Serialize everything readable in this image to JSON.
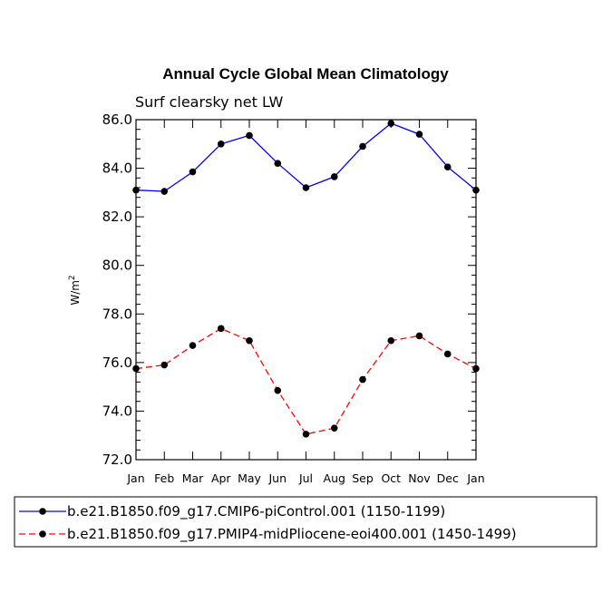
{
  "chart_data": {
    "type": "line",
    "title": "Annual Cycle Global Mean Climatology",
    "subtitle": "Surf clearsky net LW",
    "xlabel": "",
    "ylabel": "W/m",
    "ylabel_superscript": "2",
    "ylim": [
      72.0,
      86.0
    ],
    "yticks": [
      "72.0",
      "74.0",
      "76.0",
      "78.0",
      "80.0",
      "82.0",
      "84.0",
      "86.0"
    ],
    "categories": [
      "Jan",
      "Feb",
      "Mar",
      "Apr",
      "May",
      "Jun",
      "Jul",
      "Aug",
      "Sep",
      "Oct",
      "Nov",
      "Dec",
      "Jan"
    ],
    "series": [
      {
        "name": "b.e21.B1850.f09_g17.CMIP6-piControl.001 (1150-1199)",
        "color": "#0000ff",
        "dash": "solid",
        "values": [
          83.1,
          83.05,
          83.85,
          85.0,
          85.35,
          84.2,
          83.2,
          83.65,
          84.9,
          85.85,
          85.4,
          84.05,
          83.1
        ]
      },
      {
        "name": "b.e21.B1850.f09_g17.PMIP4-midPliocene-eoi400.001 (1450-1499)",
        "color": "#ff0000",
        "dash": "dashed",
        "values": [
          75.75,
          75.9,
          76.7,
          77.4,
          76.9,
          74.85,
          73.05,
          73.3,
          75.3,
          76.9,
          77.1,
          76.35,
          75.75
        ]
      }
    ],
    "grid": false,
    "legend_position": "bottom"
  }
}
